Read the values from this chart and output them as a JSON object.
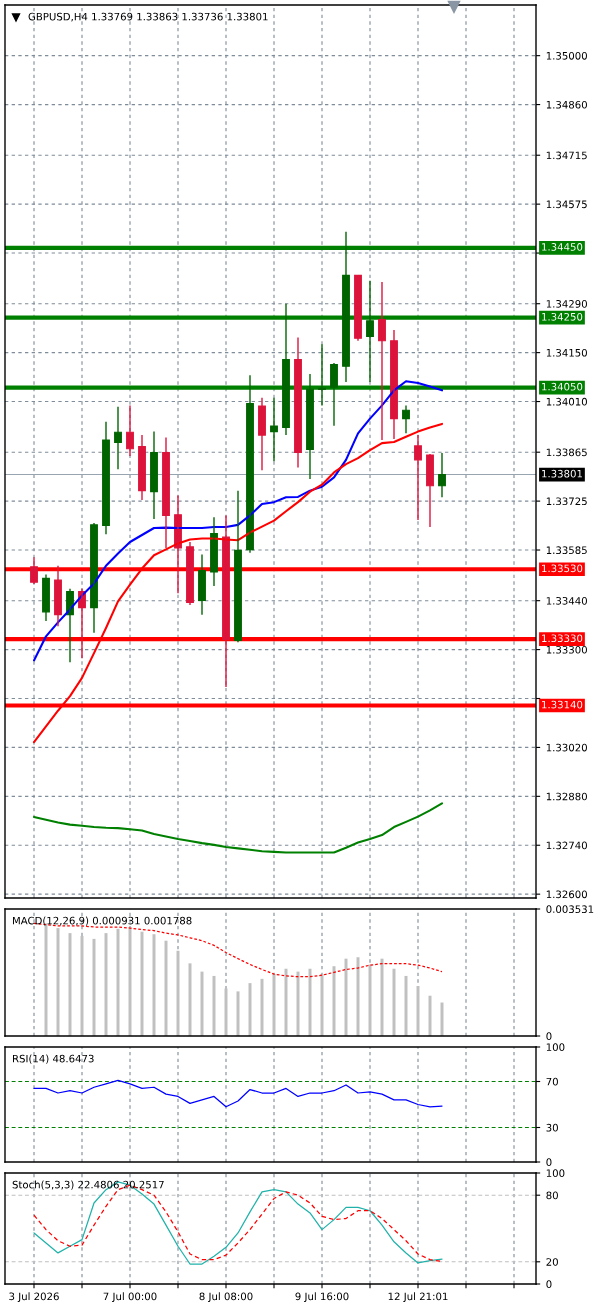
{
  "chart_data": [
    {
      "type": "candlestick",
      "title": "GBPUSD,H4 1.33769 1.33863 1.33736 1.33801",
      "categories": [
        null,
        null,
        null,
        null,
        null,
        null,
        null,
        null,
        null,
        null,
        null,
        null,
        null,
        null,
        null,
        null,
        null,
        null,
        null,
        null,
        null,
        null,
        null,
        null,
        null,
        null,
        null,
        null,
        null,
        null,
        null,
        null,
        null,
        null,
        null
      ],
      "series": [
        {
          "type": "line",
          "color": "#0000ff",
          "values": [
            1.33269,
            1.33338,
            1.33378,
            1.33415,
            1.33455,
            1.33489,
            1.3354,
            1.33575,
            1.33608,
            1.33628,
            1.33648,
            1.33649,
            1.33648,
            1.33648,
            1.33648,
            1.33651,
            1.33651,
            1.33657,
            1.33684,
            1.33717,
            1.33722,
            1.33736,
            1.33737,
            1.33755,
            1.33766,
            1.33793,
            1.33843,
            1.33919,
            1.33961,
            1.33999,
            1.34042,
            1.34068,
            1.34063,
            1.34053,
            1.34042
          ]
        },
        {
          "type": "line",
          "color": "#ff0000",
          "values": [
            1.33035,
            1.3308,
            1.33125,
            1.33167,
            1.33219,
            1.3329,
            1.33362,
            1.33438,
            1.33486,
            1.33532,
            1.3357,
            1.33587,
            1.33604,
            1.33615,
            1.33618,
            1.33618,
            1.33615,
            1.33613,
            1.33635,
            1.33652,
            1.33669,
            1.33696,
            1.33722,
            1.33752,
            1.33772,
            1.33807,
            1.33831,
            1.33848,
            1.33871,
            1.33891,
            1.33894,
            1.33909,
            1.33924,
            1.33936,
            1.33946
          ]
        },
        {
          "type": "line",
          "color": "#008000",
          "values": [
            1.32821,
            1.32813,
            1.32805,
            1.32799,
            1.32796,
            1.32792,
            1.3279,
            1.32789,
            1.32786,
            1.32782,
            1.32772,
            1.32765,
            1.32758,
            1.32752,
            1.32746,
            1.32741,
            1.32735,
            1.32731,
            1.32727,
            1.32723,
            1.32721,
            1.32719,
            1.32719,
            1.32719,
            1.32719,
            1.32719,
            1.32733,
            1.32748,
            1.32758,
            1.32769,
            1.32792,
            1.32807,
            1.32822,
            1.3284,
            1.3286
          ]
        },
        {
          "type": "candlestick",
          "ohlc": [
            [
              1.33537,
              1.33564,
              1.33488,
              1.33493
            ],
            [
              1.33408,
              1.33515,
              1.33382,
              1.33504
            ],
            [
              1.33499,
              1.3354,
              1.33367,
              1.334
            ],
            [
              1.334,
              1.33474,
              1.33264,
              1.33466
            ],
            [
              1.33466,
              1.33474,
              1.33275,
              1.3342
            ],
            [
              1.3342,
              1.33662,
              1.33348,
              1.33657
            ],
            [
              1.33655,
              1.33952,
              1.3363,
              1.339
            ],
            [
              1.33893,
              1.33995,
              1.33816,
              1.33922
            ],
            [
              1.33922,
              1.33999,
              1.33854,
              1.33875
            ],
            [
              1.33881,
              1.33914,
              1.33728,
              1.33755
            ],
            [
              1.33752,
              1.33924,
              1.33674,
              1.33864
            ],
            [
              1.33864,
              1.33907,
              1.33591,
              1.33684
            ],
            [
              1.33686,
              1.33741,
              1.33461,
              1.33591
            ],
            [
              1.33594,
              1.33608,
              1.33428,
              1.33435
            ],
            [
              1.33441,
              1.33572,
              1.334,
              1.33526
            ],
            [
              1.33522,
              1.33679,
              1.33482,
              1.33632
            ],
            [
              1.33622,
              1.33684,
              1.33193,
              1.33329
            ],
            [
              1.33326,
              1.33755,
              1.33321,
              1.33584
            ],
            [
              1.33586,
              1.34085,
              1.33577,
              1.34004
            ],
            [
              1.33997,
              1.34021,
              1.33813,
              1.33914
            ],
            [
              1.33924,
              1.34021,
              1.33839,
              1.3394
            ],
            [
              1.33936,
              1.3429,
              1.33914,
              1.3413
            ],
            [
              1.3413,
              1.34193,
              1.33821,
              1.33864
            ],
            [
              1.33873,
              1.34089,
              1.33788,
              1.34045
            ],
            [
              1.34045,
              1.34174,
              1.33999,
              1.34048
            ],
            [
              1.34051,
              1.3412,
              1.33941,
              1.34116
            ],
            [
              1.34111,
              1.34496,
              1.34066,
              1.34371
            ],
            [
              1.34371,
              1.34371,
              1.34184,
              1.34191
            ],
            [
              1.34196,
              1.34356,
              1.34066,
              1.34241
            ],
            [
              1.34245,
              1.34352,
              1.339,
              1.34184
            ],
            [
              1.34184,
              1.34215,
              1.33903,
              1.33961
            ],
            [
              1.33961,
              1.33999,
              1.33919,
              1.33985
            ],
            [
              1.33883,
              1.33914,
              1.33671,
              1.33843
            ],
            [
              1.33857,
              1.3386,
              1.33651,
              1.33769
            ],
            [
              1.33769,
              1.33863,
              1.33736,
              1.33801
            ]
          ],
          "colors": [
            "#dc143c",
            "#006400",
            "#dc143c",
            "#006400",
            "#dc143c",
            "#006400",
            "#006400",
            "#006400",
            "#dc143c",
            "#dc143c",
            "#006400",
            "#dc143c",
            "#dc143c",
            "#dc143c",
            "#006400",
            "#006400",
            "#dc143c",
            "#006400",
            "#006400",
            "#dc143c",
            "#006400",
            "#006400",
            "#dc143c",
            "#006400",
            "#006400",
            "#006400",
            "#006400",
            "#dc143c",
            "#006400",
            "#dc143c",
            "#dc143c",
            "#006400",
            "#dc143c",
            "#dc143c",
            "#006400"
          ]
        }
      ],
      "ylim": [
        1.32589,
        1.35145
      ],
      "yticks": [
        {
          "value": 1.35,
          "label": "1.35000"
        },
        {
          "value": 1.3486,
          "label": "1.34860"
        },
        {
          "value": 1.34715,
          "label": "1.34715"
        },
        {
          "value": 1.34575,
          "label": "1.34575"
        },
        {
          "value": 1.34435,
          "label": null
        },
        {
          "value": 1.3429,
          "label": "1.34290"
        },
        {
          "value": 1.3415,
          "label": "1.34150"
        },
        {
          "value": 1.3401,
          "label": "1.34010"
        },
        {
          "value": 1.33865,
          "label": "1.33865"
        },
        {
          "value": 1.33725,
          "label": "1.33725"
        },
        {
          "value": 1.33585,
          "label": "1.33585"
        },
        {
          "value": 1.3344,
          "label": "1.33440"
        },
        {
          "value": 1.333,
          "label": "1.33300"
        },
        {
          "value": 1.3316,
          "label": null
        },
        {
          "value": 1.3302,
          "label": "1.33020"
        },
        {
          "value": 1.3288,
          "label": "1.32880"
        },
        {
          "value": 1.3274,
          "label": "1.32740"
        },
        {
          "value": 1.326,
          "label": "1.32600"
        }
      ],
      "ref_lines": [
        {
          "axis": "y",
          "value": 1.3445,
          "label": "1.34450",
          "color": "#008000"
        },
        {
          "axis": "y",
          "value": 1.3425,
          "label": "1.34250",
          "color": "#008000"
        },
        {
          "axis": "y",
          "value": 1.3405,
          "label": "1.34050",
          "color": "#008000"
        },
        {
          "axis": "y",
          "value": 1.3353,
          "label": "1.33530",
          "color": "#ff0000"
        },
        {
          "axis": "y",
          "value": 1.3333,
          "label": "1.33330",
          "color": "#ff0000"
        },
        {
          "axis": "y",
          "value": 1.3314,
          "label": "1.33140",
          "color": "#ff0000"
        },
        {
          "axis": "y",
          "value": 1.33801,
          "color": "#98a4b0"
        }
      ],
      "annotations": [
        "1.33801"
      ],
      "grid": true,
      "tick_labels": "y"
    },
    {
      "type": "bar",
      "title": "MACD(12,26,9) 0.000931 0.001788",
      "categories": [
        null,
        null,
        null,
        null,
        null,
        null,
        null,
        null,
        null,
        null,
        null,
        null,
        null,
        null,
        null,
        null,
        null,
        null,
        null,
        null,
        null,
        null,
        null,
        null,
        null,
        null,
        null,
        null,
        null,
        null,
        null,
        null,
        null,
        null,
        null
      ],
      "series": [
        {
          "type": "bar",
          "color": "#c0c0c0",
          "values": [
            null,
            0.00313,
            0.003,
            0.00286,
            0.00278,
            0.0027,
            0.00286,
            0.00298,
            0.00303,
            0.0029,
            0.00283,
            0.00265,
            0.00237,
            0.00202,
            0.00179,
            0.00167,
            0.00132,
            0.00124,
            0.00147,
            0.00159,
            0.00172,
            0.00187,
            0.00179,
            0.00187,
            0.00172,
            0.00194,
            0.00215,
            0.00219,
            0.00199,
            0.00215,
            0.00187,
            0.00167,
            0.00139,
            0.00112,
            0.000931
          ]
        },
        {
          "type": "line",
          "color": "#ff0000",
          "line_style": "dotted",
          "values": [
            0.00313,
            0.0031,
            0.00306,
            0.00306,
            0.00306,
            0.00303,
            0.00303,
            0.00303,
            0.003,
            0.00296,
            0.00293,
            0.00286,
            0.00281,
            0.00273,
            0.00265,
            0.00252,
            0.00232,
            0.00215,
            0.00199,
            0.00185,
            0.00172,
            0.00167,
            0.00165,
            0.00165,
            0.00169,
            0.00177,
            0.00185,
            0.00189,
            0.00197,
            0.00201,
            0.00201,
            0.00201,
            0.00197,
            0.00189,
            0.001788
          ]
        }
      ],
      "ylim": [
        0,
        0.003531
      ],
      "yticks": [
        0,
        0.003531
      ],
      "grid": "x",
      "tick_labels": "y"
    },
    {
      "type": "line",
      "title": "RSI(14) 48.6473",
      "categories": [
        null,
        null,
        null,
        null,
        null,
        null,
        null,
        null,
        null,
        null,
        null,
        null,
        null,
        null,
        null,
        null,
        null,
        null,
        null,
        null,
        null,
        null,
        null,
        null,
        null,
        null,
        null,
        null,
        null,
        null,
        null,
        null,
        null,
        null,
        null
      ],
      "series": [
        {
          "color": "#0000ff",
          "values": [
            64,
            64,
            60,
            62,
            60,
            65,
            68,
            71,
            68,
            64,
            65,
            59,
            57,
            51,
            54,
            57,
            48,
            53,
            63,
            60,
            60,
            64,
            57,
            60,
            60,
            62,
            67,
            60,
            61,
            59,
            54,
            54,
            50,
            48,
            48.6473
          ]
        }
      ],
      "ylim": [
        0,
        100
      ],
      "yticks": [
        100,
        70,
        30,
        0
      ],
      "ref_lines": [
        {
          "axis": "y",
          "value": 70,
          "color": "#008000",
          "line_style": "dashed"
        },
        {
          "axis": "y",
          "value": 30,
          "color": "#008000",
          "line_style": "dashed"
        }
      ],
      "grid": "x",
      "tick_labels": "y"
    },
    {
      "type": "line",
      "title": "Stoch(5,3,3) 22.4806 20.2517",
      "categories": [
        "3 Jul 2026",
        null,
        null,
        null,
        null,
        null,
        null,
        null,
        "7 Jul 00:00",
        null,
        null,
        null,
        null,
        null,
        null,
        null,
        "8 Jul 08:00",
        null,
        null,
        null,
        null,
        null,
        null,
        null,
        "9 Jul 16:00",
        null,
        null,
        null,
        null,
        null,
        null,
        null,
        "12 Jul 21:01",
        null,
        null
      ],
      "series": [
        {
          "color": "#20b2aa",
          "values": [
            46,
            37,
            28,
            34,
            40,
            73,
            85,
            92,
            89,
            81,
            72,
            53,
            34,
            18,
            18,
            25,
            33,
            46,
            65,
            83,
            85,
            83,
            72,
            64,
            49,
            58,
            69,
            69,
            66,
            53,
            38,
            28,
            19,
            21,
            22.4806
          ]
        },
        {
          "color": "#ff0000",
          "line_style": "dashed",
          "values": [
            62,
            49,
            39,
            34,
            35,
            53,
            70,
            85,
            89,
            85,
            80,
            65,
            47,
            27,
            22,
            22,
            26,
            37,
            49,
            63,
            77,
            83,
            80,
            73,
            61,
            58,
            59,
            66,
            66,
            59,
            49,
            39,
            27,
            22,
            20.2517
          ]
        }
      ],
      "ylim": [
        0,
        100
      ],
      "yticks": [
        100,
        80,
        20,
        0
      ],
      "ref_lines": [
        {
          "axis": "y",
          "value": 80,
          "color": "#c0c0c0",
          "line_style": "dashed"
        },
        {
          "axis": "y",
          "value": 20,
          "color": "#c0c0c0",
          "line_style": "dashed"
        }
      ],
      "grid": "x"
    }
  ]
}
